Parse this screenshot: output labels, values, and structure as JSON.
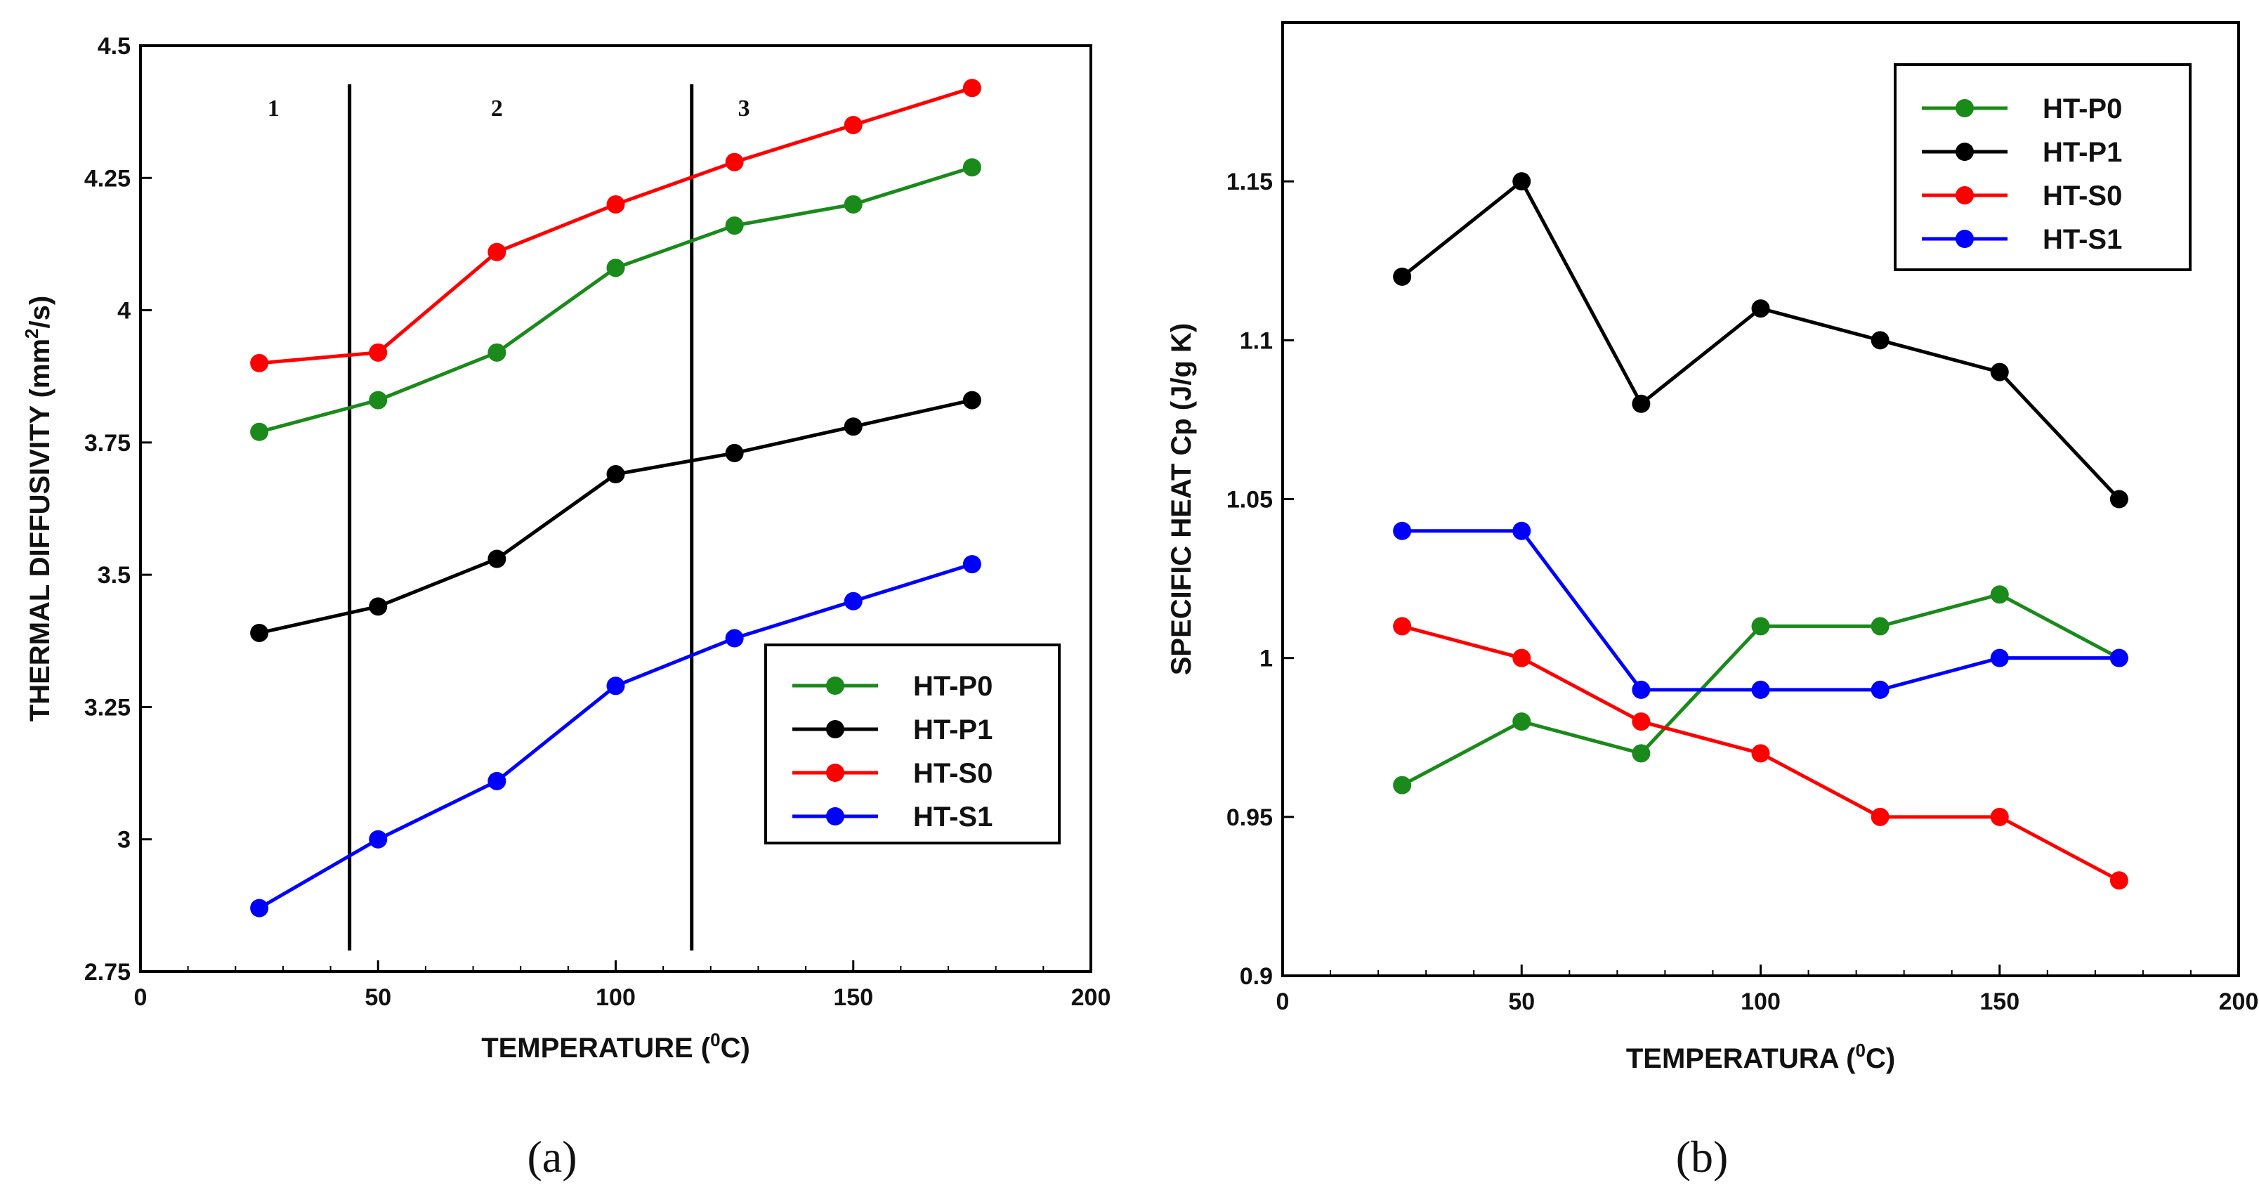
{
  "chart_data": [
    {
      "type": "line",
      "panel_label": "(a)",
      "title": "",
      "xlabel": {
        "prefix": "TEMPERATURE (",
        "sup": "0",
        "suffix": "C)"
      },
      "ylabel": {
        "prefix": "THERMAL DIFFUSIVITY (mm",
        "sup": "2",
        "suffix": "/s)"
      },
      "xlim": [
        0,
        200
      ],
      "ylim": [
        2.75,
        4.5
      ],
      "xticks": [
        0,
        50,
        100,
        150,
        200
      ],
      "yticks": [
        2.75,
        3,
        3.25,
        3.5,
        3.75,
        4,
        4.25,
        4.5
      ],
      "ytick_labels": [
        "2.75",
        "3",
        "3.25",
        "3.5",
        "3.75",
        "4",
        "4.25",
        "4.5"
      ],
      "x": [
        25,
        50,
        75,
        100,
        125,
        150,
        175
      ],
      "series": [
        {
          "name": "HT-P0",
          "color": "#1a8a1a",
          "values": [
            3.77,
            3.83,
            3.92,
            4.08,
            4.16,
            4.2,
            4.27
          ]
        },
        {
          "name": "HT-P1",
          "color": "#000000",
          "values": [
            3.39,
            3.44,
            3.53,
            3.69,
            3.73,
            3.78,
            3.83
          ]
        },
        {
          "name": "HT-S0",
          "color": "#ff0000",
          "values": [
            3.9,
            3.92,
            4.11,
            4.2,
            4.28,
            4.35,
            4.42
          ]
        },
        {
          "name": "HT-S1",
          "color": "#0000ff",
          "values": [
            2.87,
            3.0,
            3.11,
            3.29,
            3.38,
            3.45,
            3.52
          ]
        }
      ],
      "vlines": [
        44,
        116
      ],
      "region_labels": [
        {
          "text": "1",
          "x": 28
        },
        {
          "text": "2",
          "x": 75
        },
        {
          "text": "3",
          "x": 127
        }
      ],
      "legend_position": "bottom-right",
      "grid": false
    },
    {
      "type": "line",
      "panel_label": "(b)",
      "title": "",
      "xlabel": {
        "prefix": "TEMPERATURA (",
        "sup": "0",
        "suffix": "C)"
      },
      "ylabel": {
        "prefix": "SPECIFIC HEAT Cp (J/g K)",
        "sup": "",
        "suffix": ""
      },
      "xlim": [
        0,
        200
      ],
      "ylim": [
        0.9,
        1.2
      ],
      "xticks": [
        0,
        50,
        100,
        150,
        200
      ],
      "yticks": [
        0.9,
        0.95,
        1.0,
        1.05,
        1.1,
        1.15
      ],
      "ytick_labels": [
        "0.9",
        "0.95",
        "1",
        "1.05",
        "1.1",
        "1.15"
      ],
      "x": [
        25,
        50,
        75,
        100,
        125,
        150,
        175
      ],
      "series": [
        {
          "name": "HT-P0",
          "color": "#1a8a1a",
          "values": [
            0.96,
            0.98,
            0.97,
            1.01,
            1.01,
            1.02,
            1.0
          ]
        },
        {
          "name": "HT-P1",
          "color": "#000000",
          "values": [
            1.12,
            1.15,
            1.08,
            1.11,
            1.1,
            1.09,
            1.05
          ]
        },
        {
          "name": "HT-S0",
          "color": "#ff0000",
          "values": [
            1.01,
            1.0,
            0.98,
            0.97,
            0.95,
            0.95,
            0.93
          ]
        },
        {
          "name": "HT-S1",
          "color": "#0000ff",
          "values": [
            1.04,
            1.04,
            0.99,
            0.99,
            0.99,
            1.0,
            1.0
          ]
        }
      ],
      "vlines": [],
      "region_labels": [],
      "legend_position": "top-right",
      "grid": false
    }
  ]
}
